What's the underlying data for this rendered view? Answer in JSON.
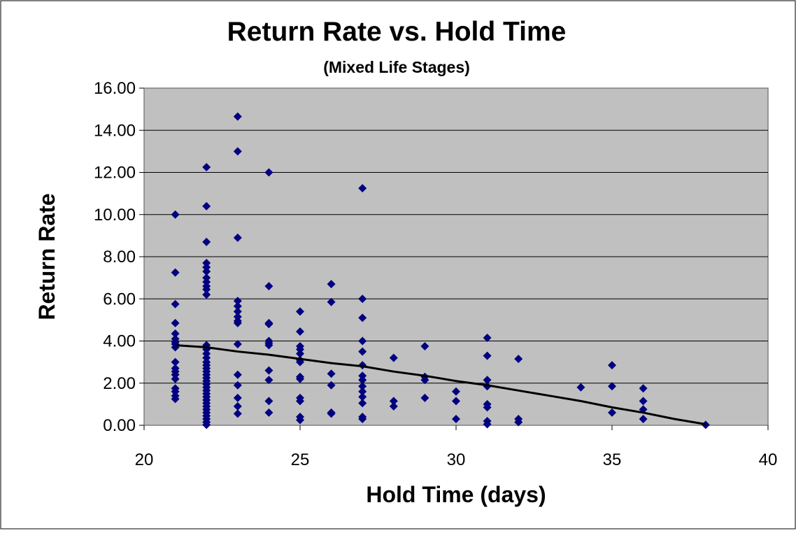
{
  "chart_data": {
    "type": "scatter",
    "title": "Return Rate vs. Hold Time",
    "subtitle": "(Mixed Life Stages)",
    "xlabel": "Hold Time (days)",
    "ylabel": "Return Rate",
    "xlim": [
      20,
      40
    ],
    "ylim": [
      0,
      16
    ],
    "xticks": [
      "20",
      "25",
      "30",
      "35",
      "40"
    ],
    "yticks": [
      "0.00",
      "2.00",
      "4.00",
      "6.00",
      "8.00",
      "10.00",
      "12.00",
      "14.00",
      "16.00"
    ],
    "grid": "horizontal",
    "legend": "none",
    "colors": {
      "plot_background": "#c0c0c0",
      "marker": "#000080",
      "trendline": "#000000",
      "gridline": "#000000"
    },
    "series": [
      {
        "marker": "diamond",
        "points": [
          [
            21,
            10.0
          ],
          [
            21,
            7.25
          ],
          [
            21,
            5.75
          ],
          [
            21,
            4.85
          ],
          [
            21,
            4.35
          ],
          [
            21,
            4.1
          ],
          [
            21,
            3.95
          ],
          [
            21,
            3.85
          ],
          [
            21,
            3.7
          ],
          [
            21,
            3.0
          ],
          [
            21,
            2.7
          ],
          [
            21,
            2.55
          ],
          [
            21,
            2.4
          ],
          [
            21,
            2.2
          ],
          [
            21,
            1.75
          ],
          [
            21,
            1.6
          ],
          [
            21,
            1.4
          ],
          [
            21,
            1.25
          ],
          [
            22,
            12.25
          ],
          [
            22,
            10.4
          ],
          [
            22,
            8.7
          ],
          [
            22,
            7.7
          ],
          [
            22,
            7.5
          ],
          [
            22,
            7.3
          ],
          [
            22,
            7.0
          ],
          [
            22,
            6.8
          ],
          [
            22,
            6.6
          ],
          [
            22,
            6.45
          ],
          [
            22,
            6.2
          ],
          [
            22,
            3.8
          ],
          [
            22,
            3.6
          ],
          [
            22,
            3.4
          ],
          [
            22,
            3.2
          ],
          [
            22,
            3.0
          ],
          [
            22,
            2.85
          ],
          [
            22,
            2.7
          ],
          [
            22,
            2.55
          ],
          [
            22,
            2.4
          ],
          [
            22,
            2.25
          ],
          [
            22,
            2.1
          ],
          [
            22,
            1.95
          ],
          [
            22,
            1.8
          ],
          [
            22,
            1.65
          ],
          [
            22,
            1.5
          ],
          [
            22,
            1.35
          ],
          [
            22,
            1.2
          ],
          [
            22,
            1.05
          ],
          [
            22,
            0.9
          ],
          [
            22,
            0.75
          ],
          [
            22,
            0.6
          ],
          [
            22,
            0.45
          ],
          [
            22,
            0.3
          ],
          [
            22,
            0.15
          ],
          [
            22,
            0.02
          ],
          [
            23,
            14.65
          ],
          [
            23,
            13.0
          ],
          [
            23,
            8.9
          ],
          [
            23,
            5.9
          ],
          [
            23,
            5.65
          ],
          [
            23,
            5.4
          ],
          [
            23,
            5.15
          ],
          [
            23,
            4.95
          ],
          [
            23,
            4.85
          ],
          [
            23,
            3.85
          ],
          [
            23,
            2.4
          ],
          [
            23,
            1.9
          ],
          [
            23,
            1.3
          ],
          [
            23,
            0.9
          ],
          [
            23,
            0.55
          ],
          [
            24,
            12.0
          ],
          [
            24,
            6.6
          ],
          [
            24,
            4.85
          ],
          [
            24,
            4.8
          ],
          [
            24,
            4.0
          ],
          [
            24,
            3.9
          ],
          [
            24,
            3.8
          ],
          [
            24,
            2.6
          ],
          [
            24,
            2.15
          ],
          [
            24,
            1.15
          ],
          [
            24,
            0.6
          ],
          [
            25,
            5.4
          ],
          [
            25,
            4.45
          ],
          [
            25,
            3.75
          ],
          [
            25,
            3.6
          ],
          [
            25,
            3.4
          ],
          [
            25,
            3.1
          ],
          [
            25,
            3.0
          ],
          [
            25,
            2.3
          ],
          [
            25,
            2.2
          ],
          [
            25,
            1.3
          ],
          [
            25,
            1.15
          ],
          [
            25,
            0.4
          ],
          [
            25,
            0.25
          ],
          [
            26,
            6.7
          ],
          [
            26,
            5.85
          ],
          [
            26,
            2.45
          ],
          [
            26,
            1.9
          ],
          [
            26,
            0.6
          ],
          [
            26,
            0.55
          ],
          [
            27,
            11.25
          ],
          [
            27,
            6.0
          ],
          [
            27,
            5.1
          ],
          [
            27,
            4.0
          ],
          [
            27,
            3.5
          ],
          [
            27,
            2.85
          ],
          [
            27,
            2.35
          ],
          [
            27,
            2.15
          ],
          [
            27,
            1.85
          ],
          [
            27,
            1.6
          ],
          [
            27,
            1.35
          ],
          [
            27,
            1.05
          ],
          [
            27,
            0.4
          ],
          [
            27,
            0.3
          ],
          [
            28,
            3.2
          ],
          [
            28,
            1.15
          ],
          [
            28,
            0.9
          ],
          [
            29,
            3.75
          ],
          [
            29,
            2.3
          ],
          [
            29,
            2.15
          ],
          [
            29,
            1.3
          ],
          [
            30,
            1.6
          ],
          [
            30,
            1.15
          ],
          [
            30,
            0.3
          ],
          [
            31,
            4.15
          ],
          [
            31,
            3.3
          ],
          [
            31,
            2.15
          ],
          [
            31,
            1.85
          ],
          [
            31,
            1.0
          ],
          [
            31,
            0.85
          ],
          [
            31,
            0.2
          ],
          [
            31,
            0.05
          ],
          [
            32,
            3.15
          ],
          [
            32,
            0.3
          ],
          [
            32,
            0.15
          ],
          [
            34,
            1.8
          ],
          [
            35,
            2.85
          ],
          [
            35,
            1.85
          ],
          [
            35,
            0.6
          ],
          [
            36,
            1.75
          ],
          [
            36,
            1.15
          ],
          [
            36,
            0.75
          ],
          [
            36,
            0.3
          ],
          [
            38,
            0.02
          ]
        ]
      }
    ],
    "trendline": {
      "type": "polynomial",
      "points": [
        [
          21,
          3.8
        ],
        [
          22,
          3.7
        ],
        [
          23,
          3.5
        ],
        [
          24,
          3.35
        ],
        [
          25,
          3.15
        ],
        [
          26,
          2.95
        ],
        [
          27,
          2.8
        ],
        [
          28,
          2.55
        ],
        [
          29,
          2.35
        ],
        [
          30,
          2.1
        ],
        [
          31,
          1.9
        ],
        [
          32,
          1.65
        ],
        [
          33,
          1.4
        ],
        [
          34,
          1.15
        ],
        [
          35,
          0.85
        ],
        [
          36,
          0.6
        ],
        [
          37,
          0.3
        ],
        [
          38,
          0.05
        ]
      ]
    }
  }
}
